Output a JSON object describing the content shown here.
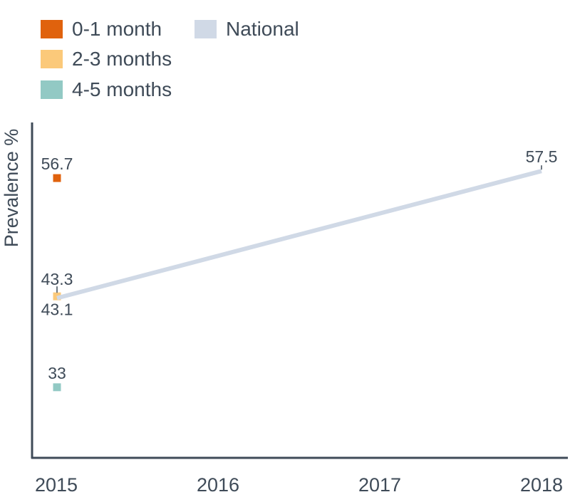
{
  "chart_data": {
    "type": "line",
    "ylabel": "Prevalence %",
    "xlabel": "",
    "categories": [
      "2015",
      "2016",
      "2017",
      "2018"
    ],
    "ylim": [
      25,
      63
    ],
    "grid": false,
    "legend_position": "top-left",
    "series": [
      {
        "name": "0-1 month",
        "color": "#e0620d",
        "marker": "square",
        "points": [
          {
            "x": "2015",
            "y": 56.7
          }
        ],
        "labels": [
          "56.7"
        ]
      },
      {
        "name": "2-3 months",
        "color": "#fbc97a",
        "marker": "square",
        "points": [
          {
            "x": "2015",
            "y": 43.3
          }
        ],
        "labels": [
          "43.3"
        ]
      },
      {
        "name": "4-5 months",
        "color": "#92c9c4",
        "marker": "square",
        "points": [
          {
            "x": "2015",
            "y": 33
          }
        ],
        "labels": [
          "33"
        ]
      },
      {
        "name": "National",
        "color": "#d0d9e6",
        "marker": "line",
        "points": [
          {
            "x": "2015",
            "y": 43.1
          },
          {
            "x": "2018",
            "y": 57.5
          }
        ],
        "labels": [
          "43.1",
          "57.5"
        ]
      }
    ],
    "legend": [
      {
        "label": "0-1 month",
        "color": "#e0620d"
      },
      {
        "label": "2-3 months",
        "color": "#fbc97a"
      },
      {
        "label": "4-5 months",
        "color": "#92c9c4"
      },
      {
        "label": "National",
        "color": "#d0d9e6"
      }
    ]
  }
}
